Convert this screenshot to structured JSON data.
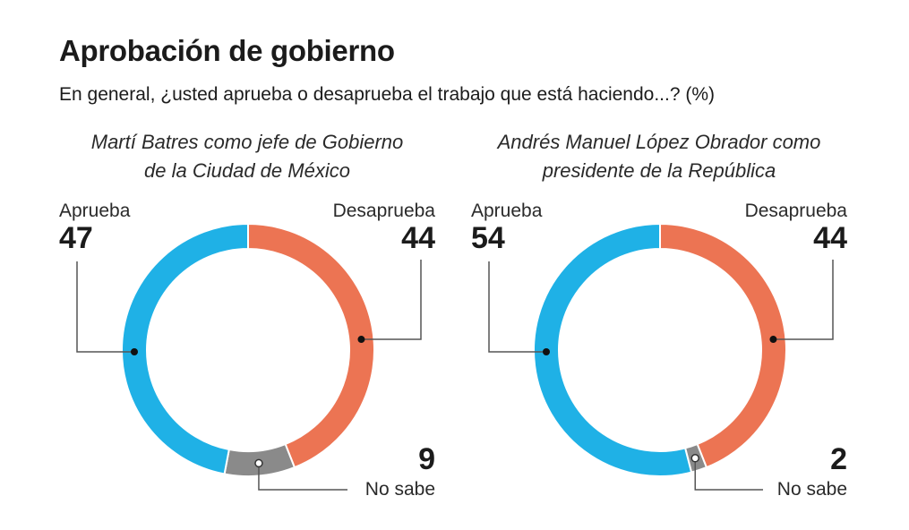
{
  "title": "Aprobación de gobierno",
  "subtitle": "En general, ¿usted aprueba o desaprueba el trabajo que está haciendo...? (%)",
  "colors": {
    "aprueba": "#1fb1e6",
    "desaprueba": "#ec7453",
    "no_sabe": "#8a8a8a"
  },
  "chart_data": [
    {
      "type": "pie",
      "variant": "donut",
      "title_lines": [
        "Martí Batres como jefe de Gobierno",
        "de la Ciudad de México"
      ],
      "slices": [
        {
          "key": "desaprueba",
          "label": "Desaprueba",
          "value": 44
        },
        {
          "key": "no_sabe",
          "label": "No sabe",
          "value": 9
        },
        {
          "key": "aprueba",
          "label": "Aprueba",
          "value": 47
        }
      ],
      "unit": "%"
    },
    {
      "type": "pie",
      "variant": "donut",
      "title_lines": [
        "Andrés Manuel López Obrador como",
        "presidente de la República"
      ],
      "slices": [
        {
          "key": "desaprueba",
          "label": "Desaprueba",
          "value": 44
        },
        {
          "key": "no_sabe",
          "label": "No sabe",
          "value": 2
        },
        {
          "key": "aprueba",
          "label": "Aprueba",
          "value": 54
        }
      ],
      "unit": "%"
    }
  ]
}
